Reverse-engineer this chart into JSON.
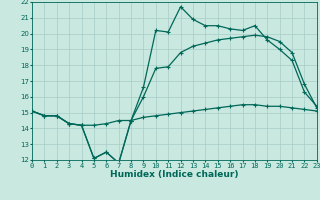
{
  "bg_color": "#c8e8e0",
  "grid_color": "#a8ccc8",
  "line_color": "#006858",
  "xlabel": "Humidex (Indice chaleur)",
  "xlim": [
    0,
    23
  ],
  "ylim": [
    12,
    22
  ],
  "xticks": [
    0,
    1,
    2,
    3,
    4,
    5,
    6,
    7,
    8,
    9,
    10,
    11,
    12,
    13,
    14,
    15,
    16,
    17,
    18,
    19,
    20,
    21,
    22,
    23
  ],
  "yticks": [
    12,
    13,
    14,
    15,
    16,
    17,
    18,
    19,
    20,
    21,
    22
  ],
  "curve1_x": [
    0,
    1,
    2,
    3,
    4,
    5,
    6,
    7,
    8,
    9,
    10,
    11,
    12,
    13,
    14,
    15,
    16,
    17,
    18,
    19,
    20,
    21,
    22,
    23
  ],
  "curve1_y": [
    15.1,
    14.8,
    14.8,
    14.3,
    14.2,
    12.1,
    12.5,
    11.8,
    14.5,
    16.6,
    20.2,
    20.1,
    21.7,
    20.9,
    20.5,
    20.5,
    20.3,
    20.2,
    20.5,
    19.6,
    19.0,
    18.3,
    16.3,
    15.4
  ],
  "curve2_x": [
    0,
    1,
    2,
    3,
    4,
    5,
    6,
    7,
    8,
    9,
    10,
    11,
    12,
    13,
    14,
    15,
    16,
    17,
    18,
    19,
    20,
    21,
    22,
    23
  ],
  "curve2_y": [
    15.1,
    14.8,
    14.8,
    14.3,
    14.2,
    12.1,
    12.5,
    11.8,
    14.5,
    16.0,
    17.8,
    17.9,
    18.8,
    19.2,
    19.4,
    19.6,
    19.7,
    19.8,
    19.9,
    19.8,
    19.5,
    18.8,
    16.8,
    15.3
  ],
  "curve3_x": [
    0,
    1,
    2,
    3,
    4,
    5,
    6,
    7,
    8,
    9,
    10,
    11,
    12,
    13,
    14,
    15,
    16,
    17,
    18,
    19,
    20,
    21,
    22,
    23
  ],
  "curve3_y": [
    15.1,
    14.8,
    14.8,
    14.3,
    14.2,
    14.2,
    14.3,
    14.5,
    14.5,
    14.7,
    14.8,
    14.9,
    15.0,
    15.1,
    15.2,
    15.3,
    15.4,
    15.5,
    15.5,
    15.4,
    15.4,
    15.3,
    15.2,
    15.1
  ],
  "xlabel_fontsize": 6.5,
  "tick_fontsize": 5.0,
  "linewidth": 0.9,
  "markersize": 3.0
}
